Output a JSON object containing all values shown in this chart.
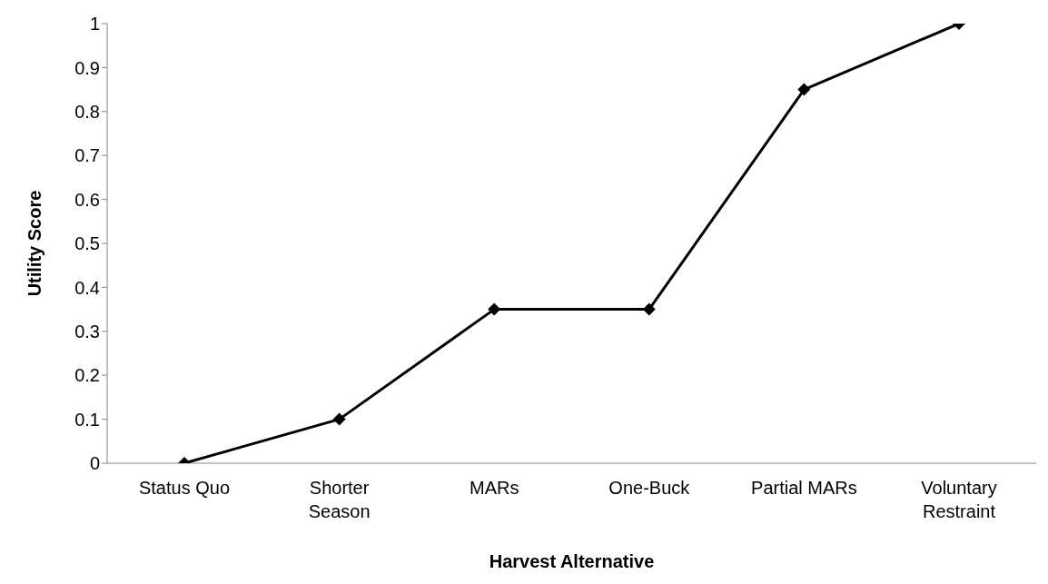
{
  "chart_data": {
    "type": "line",
    "xlabel": "Harvest Alternative",
    "ylabel": "Utility Score",
    "categories": [
      "Status Quo",
      "Shorter Season",
      "MARs",
      "One-Buck",
      "Partial MARs",
      "Voluntary Restraint"
    ],
    "series": [
      {
        "color": "#000000",
        "values": [
          0,
          0.1,
          0.35,
          0.35,
          0.85,
          1
        ]
      }
    ],
    "ylim": [
      0,
      1
    ],
    "yticks": [
      0,
      {
        "value": 0.1,
        "label": "0.1"
      },
      {
        "value": 0.2,
        "label": "0.2"
      },
      {
        "value": 0.3,
        "label": "0.3"
      },
      {
        "value": 0.4,
        "label": "0.4"
      },
      {
        "value": 0.5,
        "label": "0.5"
      },
      {
        "value": 0.6,
        "label": "0.6"
      },
      {
        "value": 0.7,
        "label": "0.7"
      },
      {
        "value": 0.8,
        "label": "0.8"
      },
      {
        "value": 0.9,
        "label": "0.9"
      },
      1
    ],
    "grid": false,
    "legend": false,
    "marker": "diamond",
    "line_style": "solid"
  }
}
